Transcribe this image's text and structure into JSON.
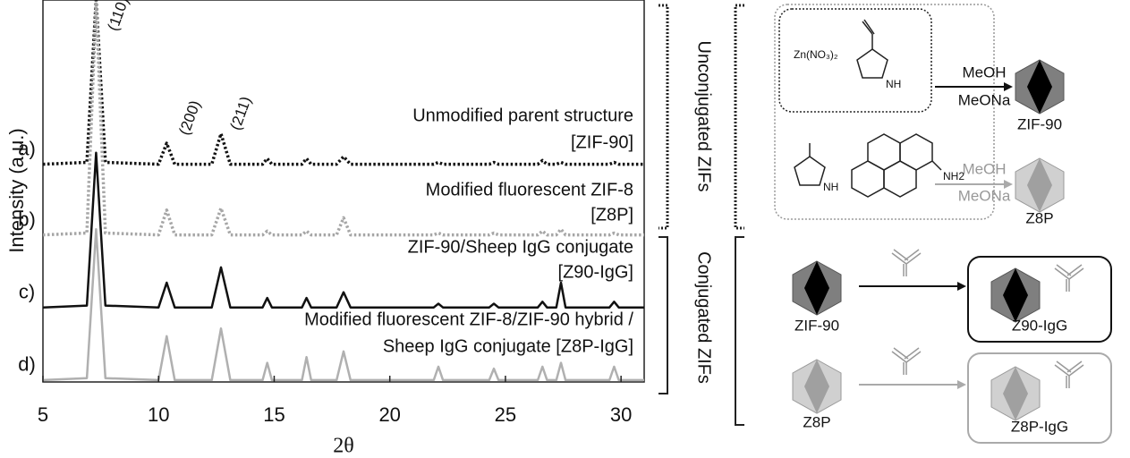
{
  "chart_data": {
    "type": "line",
    "x_label": "2θ",
    "y_label": "Intensity (a.u.)",
    "x": [
      5,
      6.9,
      7.3,
      7.7,
      10.0,
      10.35,
      10.7,
      12.3,
      12.7,
      13.1,
      14.5,
      14.7,
      14.9,
      16.2,
      16.4,
      16.6,
      17.7,
      18.0,
      18.3,
      21.9,
      22.1,
      22.3,
      24.3,
      24.5,
      24.7,
      26.4,
      26.6,
      26.8,
      27.2,
      27.4,
      27.6,
      29.5,
      29.7,
      29.9,
      31
    ],
    "xlim": [
      5,
      31
    ],
    "xticks": [
      5,
      10,
      15,
      20,
      25,
      30
    ],
    "ylim": [
      0,
      100
    ],
    "series": [
      {
        "name": "a)",
        "color": "#111111",
        "style": "dotted",
        "values": [
          57,
          57.5,
          100,
          57.5,
          57,
          62.5,
          57,
          57,
          65,
          57,
          57,
          58.5,
          57,
          57,
          58.5,
          57,
          57,
          59,
          57,
          57,
          57.5,
          57,
          57,
          57.5,
          57,
          57,
          58,
          57,
          57,
          57.5,
          57,
          57,
          57.5,
          57,
          57
        ]
      },
      {
        "name": "b)",
        "color": "#a6a6a6",
        "style": "dotted",
        "values": [
          38.5,
          39,
          99,
          39,
          38.5,
          45,
          38.5,
          38.5,
          45.5,
          38.5,
          38.5,
          39.5,
          38.5,
          38.5,
          39.5,
          38.5,
          38.5,
          43,
          38.5,
          38.5,
          39,
          38.5,
          38.5,
          39,
          38.5,
          38.5,
          39.5,
          38.5,
          38.5,
          40,
          38.5,
          38.5,
          39,
          38.5,
          38.5
        ]
      },
      {
        "name": "c)",
        "color": "#111111",
        "style": "solid",
        "values": [
          19.5,
          20,
          60,
          20,
          19.5,
          26,
          19.5,
          19.5,
          30,
          19.5,
          19.5,
          22,
          19.5,
          19.5,
          22,
          19.5,
          19.5,
          23.5,
          19.5,
          19.5,
          20.5,
          19.5,
          19.5,
          20.5,
          19.5,
          19.5,
          21,
          19.5,
          19.5,
          26,
          19.5,
          19.5,
          21,
          19.5,
          19.5
        ]
      },
      {
        "name": "d)",
        "color": "#b0b0b0",
        "style": "solid",
        "values": [
          0.5,
          1,
          40,
          1,
          0.5,
          12,
          0.5,
          0.5,
          14,
          0.5,
          0.5,
          5,
          0.5,
          0.5,
          6.5,
          0.5,
          0.5,
          8,
          0.5,
          0.5,
          4,
          0.5,
          0.5,
          3.5,
          0.5,
          0.5,
          4,
          0.5,
          0.5,
          5,
          0.5,
          0.5,
          4,
          0.5,
          0.5
        ]
      }
    ],
    "peak_labels": [
      "(110)",
      "(200)",
      "(211)"
    ],
    "descriptions": [
      [
        "Unmodified parent structure",
        "[ZIF-90]"
      ],
      [
        "Modified fluorescent ZIF-8",
        "[Z8P]"
      ],
      [
        "ZIF-90/Sheep IgG conjugate",
        "[Z90-IgG]"
      ],
      [
        "Modified fluorescent ZIF-8/ZIF-90 hybrid /",
        "Sheep IgG conjugate [Z8P-IgG]"
      ]
    ],
    "groups": [
      "Unconjugated ZIFs",
      "Conjugated ZIFs"
    ]
  },
  "scheme": {
    "precursors": {
      "salt": "Zn(NO₃)₂",
      "nh_aldehyde": "NH",
      "nh_methyl": "NH",
      "amine": "NH2"
    },
    "reagents": [
      [
        "MeOH",
        "MeONa"
      ],
      [
        "MeOH",
        "MeONa"
      ]
    ],
    "products": [
      "ZIF-90",
      "Z8P"
    ],
    "conjugation": {
      "inputs": [
        "ZIF-90",
        "Z8P"
      ],
      "outputs": [
        "Z90-IgG",
        "Z8P-IgG"
      ]
    }
  }
}
